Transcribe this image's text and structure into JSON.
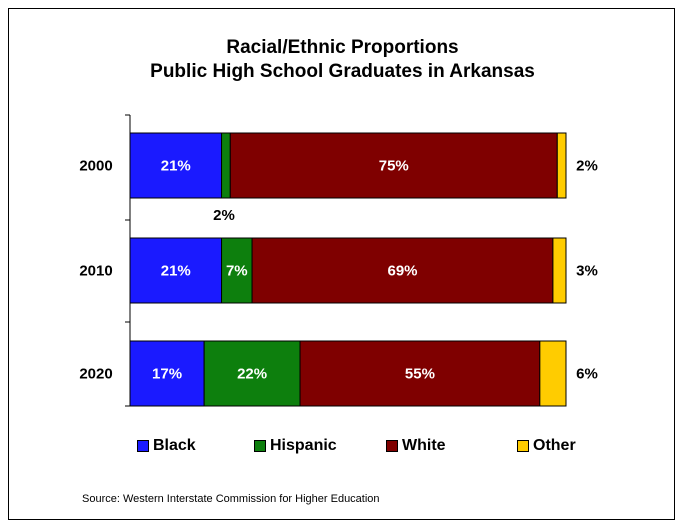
{
  "chart_data": {
    "type": "bar",
    "orientation": "horizontal",
    "stacked": true,
    "title": "Racial/Ethnic Proportions",
    "subtitle": "Public High School Graduates in Arkansas",
    "categories": [
      "2000",
      "2010",
      "2020"
    ],
    "series": [
      {
        "name": "Black",
        "color": "#1a1aff",
        "values": [
          21,
          21,
          17
        ],
        "labels": [
          "21%",
          "21%",
          "17%"
        ]
      },
      {
        "name": "Hispanic",
        "color": "#0d7f0d",
        "values": [
          2,
          7,
          22
        ],
        "labels": [
          "2%",
          "7%",
          "22%"
        ]
      },
      {
        "name": "White",
        "color": "#7f0000",
        "values": [
          75,
          69,
          55
        ],
        "labels": [
          "75%",
          "69%",
          "55%"
        ]
      },
      {
        "name": "Other",
        "color": "#ffcc00",
        "values": [
          2,
          3,
          6
        ],
        "labels": [
          "2%",
          "3%",
          "6%"
        ]
      }
    ],
    "xlim": [
      0,
      100
    ],
    "grid": false,
    "legend_position": "bottom"
  },
  "source": "Source: Western Interstate Commission for Higher Education"
}
